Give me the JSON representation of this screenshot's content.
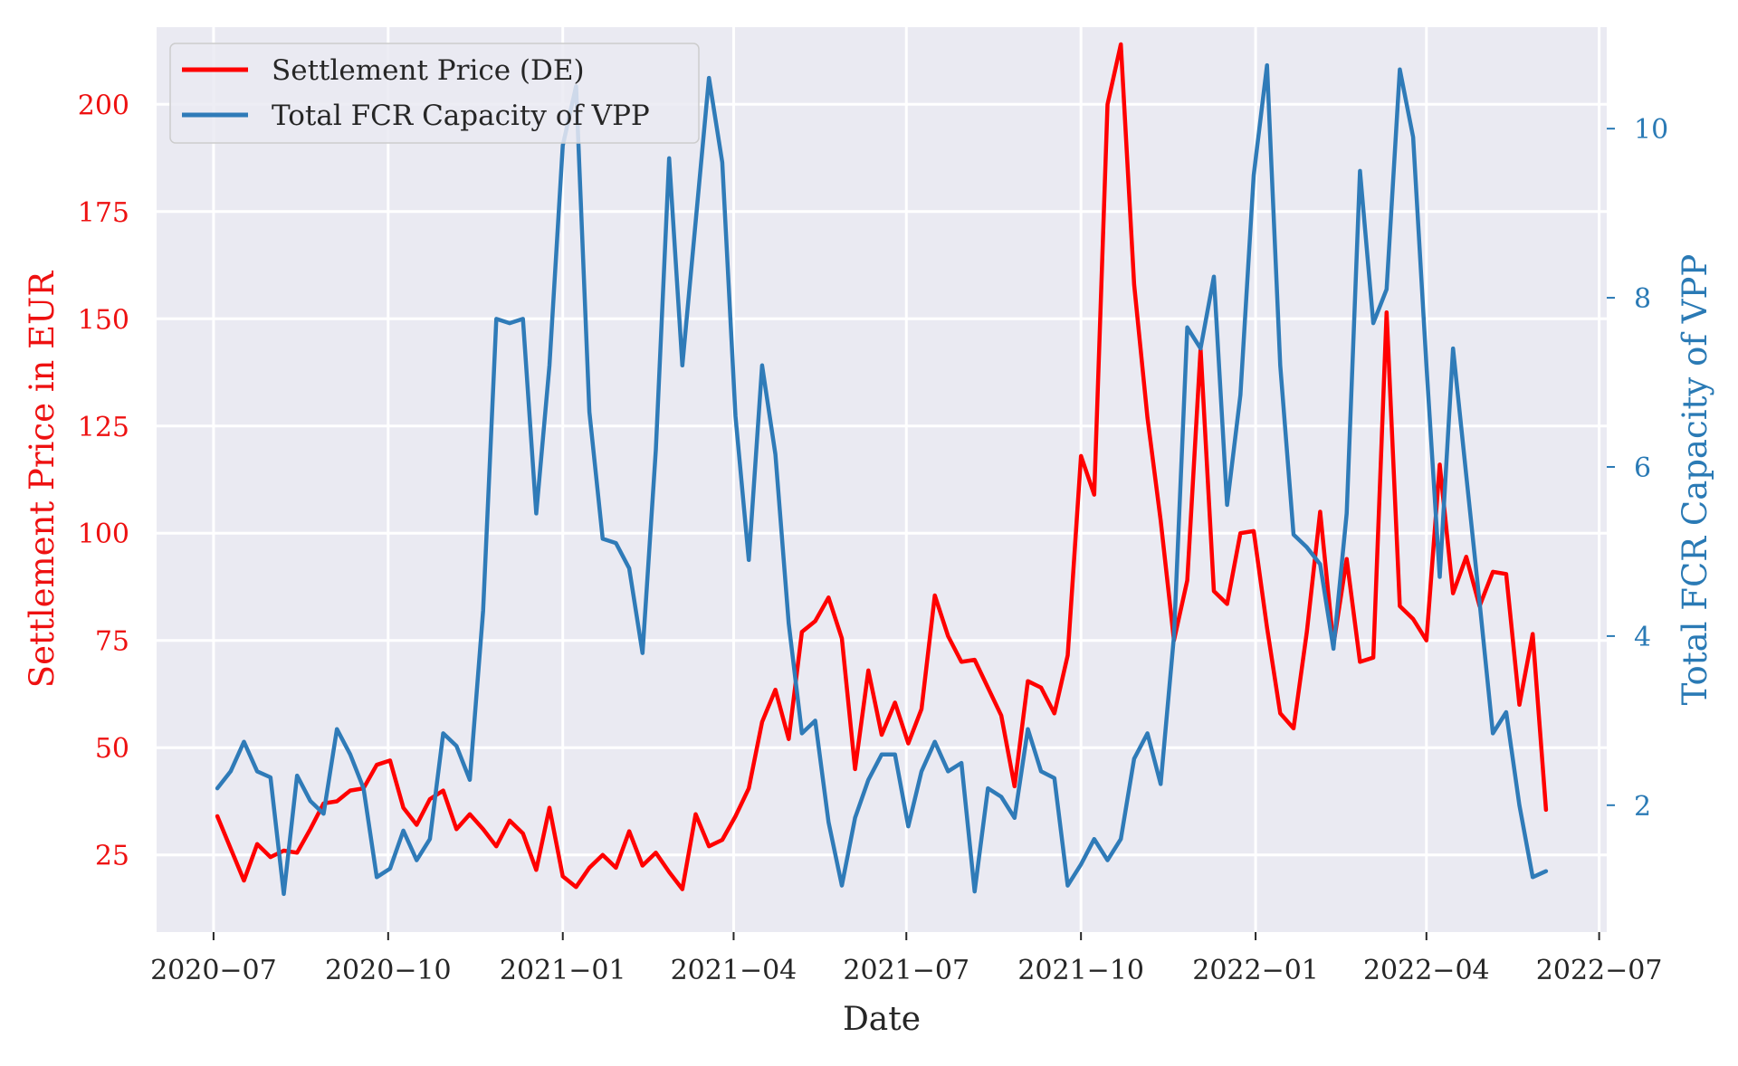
{
  "chart_data": {
    "type": "line",
    "title": "",
    "xlabel": "Date",
    "ylabel_left": "Settlement Price in EUR",
    "ylabel_right": "Total FCR Capacity of VPP",
    "x_axis_type": "date",
    "xlim": [
      "2020-06-01",
      "2022-07-05"
    ],
    "ylim_left": [
      7,
      218
    ],
    "ylim_right": [
      0.5,
      11.2
    ],
    "x_ticks": [
      {
        "date": "2020-07-01",
        "label": "2020−07"
      },
      {
        "date": "2020-10-01",
        "label": "2020−10"
      },
      {
        "date": "2021-01-01",
        "label": "2021−01"
      },
      {
        "date": "2021-04-01",
        "label": "2021−04"
      },
      {
        "date": "2021-07-01",
        "label": "2021−07"
      },
      {
        "date": "2021-10-01",
        "label": "2021−10"
      },
      {
        "date": "2022-01-01",
        "label": "2022−01"
      },
      {
        "date": "2022-04-01",
        "label": "2022−04"
      },
      {
        "date": "2022-07-01",
        "label": "2022−07"
      }
    ],
    "y_ticks_left": [
      25,
      50,
      75,
      100,
      125,
      150,
      175,
      200
    ],
    "y_ticks_right": [
      2,
      4,
      6,
      8,
      10
    ],
    "grid": true,
    "legend_position": "top-left",
    "colors": {
      "left_axis": "#ee1111",
      "right_axis": "#2a7ab5",
      "plot_background": "#eaeaf2",
      "grid": "#ffffff"
    },
    "series": [
      {
        "name": "Settlement Price (DE)",
        "axis": "left",
        "color": "#ff0000",
        "start_date": "2020-07-03",
        "step_days": 7,
        "values": [
          34,
          26.5,
          19,
          27.5,
          24.5,
          26,
          25.5,
          31,
          37,
          37.5,
          40,
          40.5,
          46,
          47,
          36,
          32,
          38,
          40,
          31,
          34.5,
          31,
          27,
          33,
          30,
          21.5,
          36,
          20,
          17.5,
          22,
          25,
          22,
          30.5,
          22.5,
          25.5,
          21,
          17,
          34.5,
          27,
          28.5,
          34,
          40.5,
          56,
          63.5,
          52,
          77,
          79.5,
          85,
          75.5,
          45,
          68,
          53,
          60.5,
          51,
          59,
          85.5,
          76,
          70,
          70.5,
          64,
          57.5,
          41,
          65.5,
          64,
          58,
          71.5,
          118,
          109,
          200,
          214,
          158,
          127,
          103,
          75,
          89,
          143,
          86.5,
          83.5,
          100,
          100.5,
          78,
          58,
          54.5,
          77,
          105,
          74,
          94,
          70,
          71,
          151.5,
          83,
          80,
          75,
          116,
          86,
          94.5,
          83,
          91,
          90.5,
          60,
          76.5,
          35.5
        ]
      },
      {
        "name": "Total FCR Capacity of VPP",
        "axis": "right",
        "color": "#2f7bb8",
        "start_date": "2020-07-03",
        "step_days": 7,
        "values": [
          2.2,
          2.4,
          2.75,
          2.4,
          2.33,
          0.95,
          2.35,
          2.05,
          1.9,
          2.9,
          2.6,
          2.2,
          1.15,
          1.25,
          1.7,
          1.35,
          1.6,
          2.85,
          2.7,
          2.3,
          4.3,
          7.75,
          7.7,
          7.75,
          5.45,
          7.2,
          9.8,
          10.5,
          6.65,
          5.15,
          5.1,
          4.8,
          3.8,
          6.2,
          9.65,
          7.2,
          8.9,
          10.6,
          9.6,
          6.6,
          4.9,
          7.2,
          6.15,
          4.15,
          2.85,
          3.0,
          1.8,
          1.05,
          1.85,
          2.3,
          2.6,
          2.6,
          1.75,
          2.4,
          2.75,
          2.4,
          2.5,
          0.98,
          2.2,
          2.1,
          1.85,
          2.9,
          2.4,
          2.32,
          1.05,
          1.3,
          1.6,
          1.35,
          1.6,
          2.55,
          2.85,
          2.25,
          4.0,
          7.65,
          7.4,
          8.25,
          5.55,
          6.85,
          9.45,
          10.75,
          7.2,
          5.2,
          5.05,
          4.85,
          3.85,
          5.45,
          9.5,
          7.7,
          8.1,
          10.7,
          9.9,
          7.2,
          4.7,
          7.4,
          5.9,
          4.4,
          2.85,
          3.1,
          2.0,
          1.15,
          1.22
        ]
      }
    ]
  }
}
